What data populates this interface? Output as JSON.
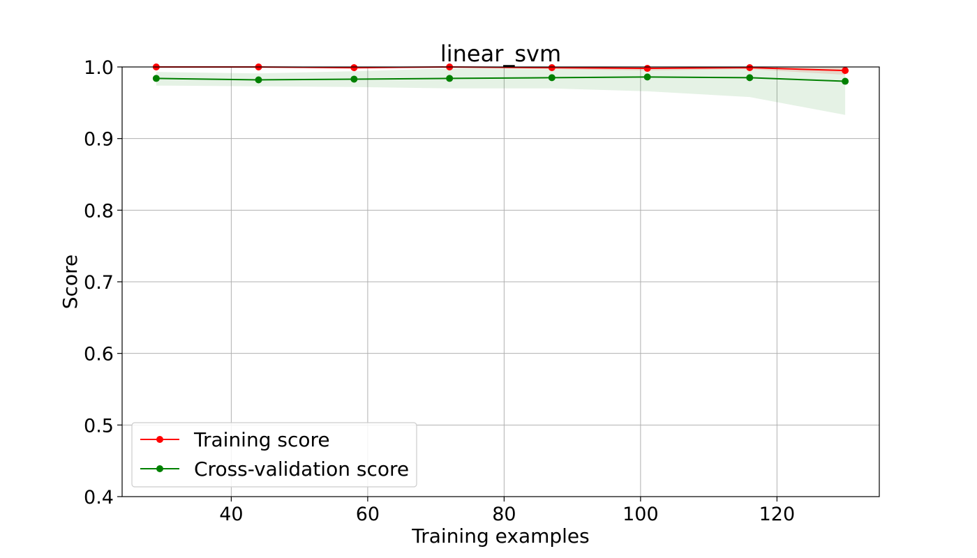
{
  "chart_data": {
    "type": "line",
    "title": "linear_svm",
    "xlabel": "Training examples",
    "ylabel": "Score",
    "xlim": [
      24,
      135
    ],
    "ylim": [
      0.4,
      1.0
    ],
    "xticks": [
      40,
      60,
      80,
      100,
      120
    ],
    "yticks": [
      0.4,
      0.5,
      0.6,
      0.7,
      0.8,
      0.9,
      1.0
    ],
    "yticklabels": [
      "0.4",
      "0.5",
      "0.6",
      "0.7",
      "0.8",
      "0.9",
      "1.0"
    ],
    "grid": true,
    "legend_position": "lower-left",
    "x": [
      29,
      44,
      58,
      72,
      87,
      101,
      116,
      130
    ],
    "series": [
      {
        "name": "Training score",
        "color": "#ff0000",
        "values": [
          1.0,
          1.0,
          0.999,
          1.0,
          0.999,
          0.998,
          0.999,
          0.995
        ],
        "band_lower": [
          1.0,
          1.0,
          0.997,
          1.0,
          0.997,
          0.995,
          0.997,
          0.989
        ],
        "band_upper": [
          1.0,
          1.0,
          1.0,
          1.0,
          1.0,
          1.0,
          1.0,
          1.0
        ]
      },
      {
        "name": "Cross-validation score",
        "color": "#008000",
        "values": [
          0.984,
          0.982,
          0.983,
          0.984,
          0.985,
          0.986,
          0.985,
          0.98
        ],
        "band_lower": [
          0.974,
          0.973,
          0.972,
          0.97,
          0.97,
          0.966,
          0.958,
          0.933
        ],
        "band_upper": [
          0.993,
          0.991,
          0.994,
          0.998,
          1.0,
          1.0,
          1.0,
          1.0
        ]
      }
    ]
  }
}
